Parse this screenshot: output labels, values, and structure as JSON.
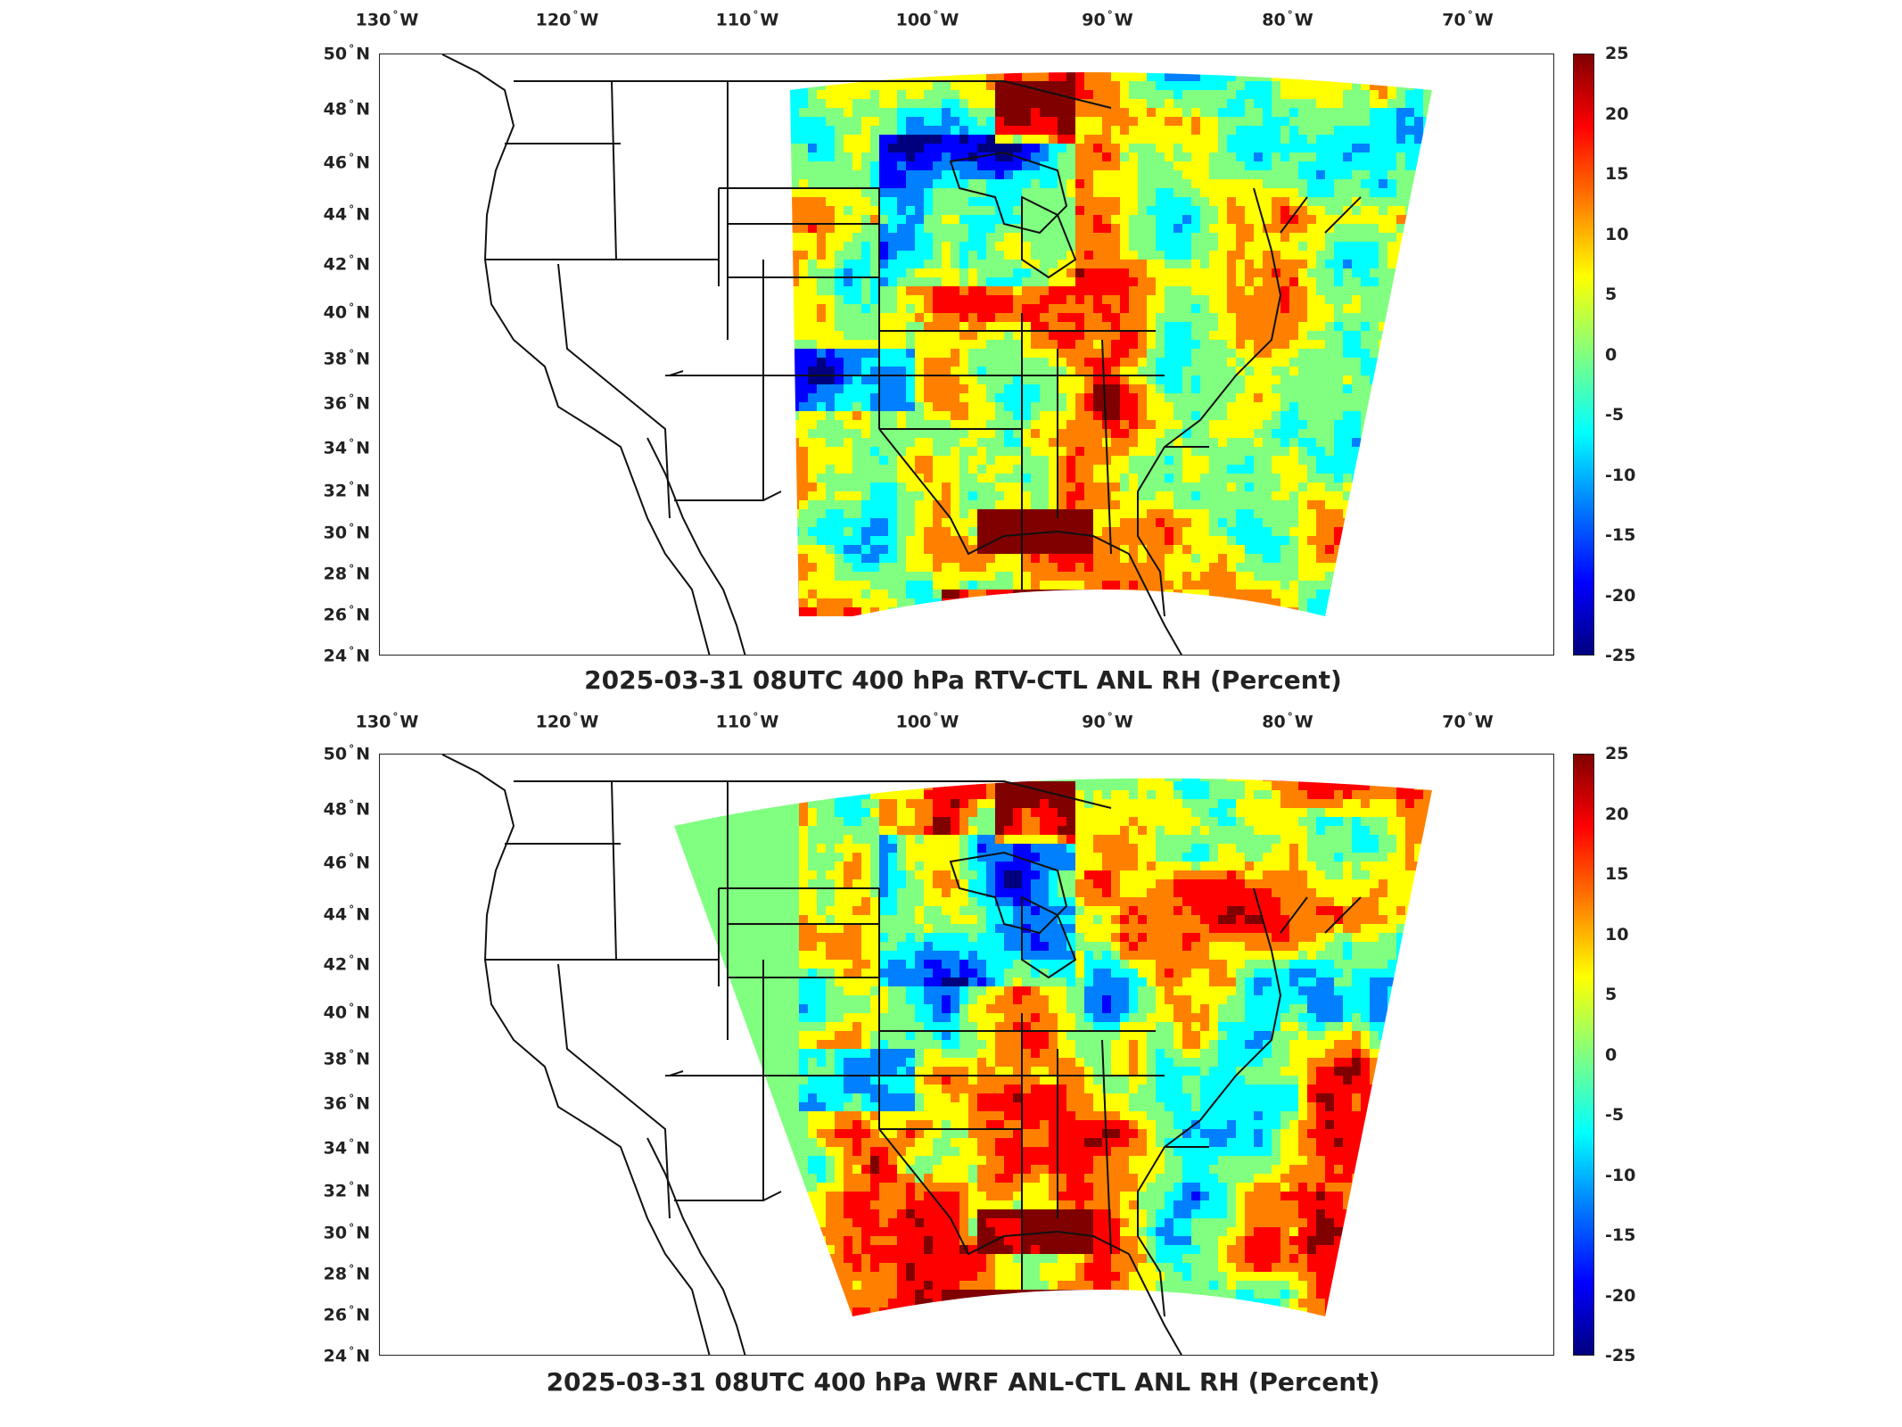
{
  "panels": [
    {
      "title": "2025-03-31 08UTC 400 hPa RTV-CTL ANL RH (Percent)",
      "lon_labels": [
        "130",
        "120",
        "110",
        "100",
        "90",
        "80",
        "70"
      ],
      "lon_suffix": "W",
      "lat_labels": [
        "50",
        "48",
        "46",
        "44",
        "42",
        "40",
        "38",
        "36",
        "34",
        "32",
        "30",
        "28",
        "26",
        "24"
      ],
      "lat_suffix": "N",
      "colorbar_ticks": [
        "25",
        "20",
        "15",
        "10",
        "5",
        "0",
        "-5",
        "-10",
        "-15",
        "-20",
        "-25"
      ],
      "domain": "radar-limited"
    },
    {
      "title": "2025-03-31 08UTC 400 hPa WRF ANL-CTL ANL RH (Percent)",
      "lon_labels": [
        "130",
        "120",
        "110",
        "100",
        "90",
        "80",
        "70"
      ],
      "lon_suffix": "W",
      "lat_labels": [
        "50",
        "48",
        "46",
        "44",
        "42",
        "40",
        "38",
        "36",
        "34",
        "32",
        "30",
        "28",
        "26",
        "24"
      ],
      "lat_suffix": "N",
      "colorbar_ticks": [
        "25",
        "20",
        "15",
        "10",
        "5",
        "0",
        "-5",
        "-10",
        "-15",
        "-20",
        "-25"
      ],
      "domain": "full"
    }
  ],
  "colormap": [
    "#00007f",
    "#0000ff",
    "#0080ff",
    "#00ffff",
    "#80ff80",
    "#ffff00",
    "#ff8000",
    "#ff0000",
    "#800000"
  ],
  "colorbar_range": [
    -25,
    25
  ]
}
